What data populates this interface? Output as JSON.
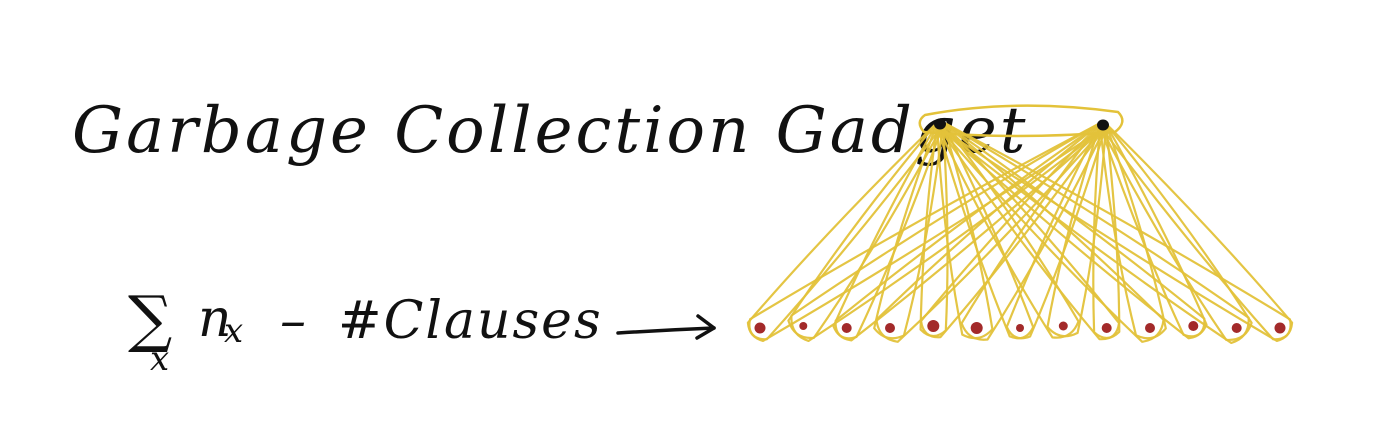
{
  "title": "Garbage Collection Gadget",
  "formula": {
    "sum_symbol": "∑",
    "sum_subscript": "x",
    "term": "n",
    "term_subscript": "x",
    "operator": "–",
    "rest": "#Clauses"
  },
  "colors": {
    "ink": "#111111",
    "edge": "#e3c23a",
    "top_node": "#111111",
    "bottom_node": "#a32a2a"
  },
  "graph": {
    "top_node_count": 2,
    "bottom_node_count": 13,
    "edges": "each top node connected to every bottom node"
  }
}
